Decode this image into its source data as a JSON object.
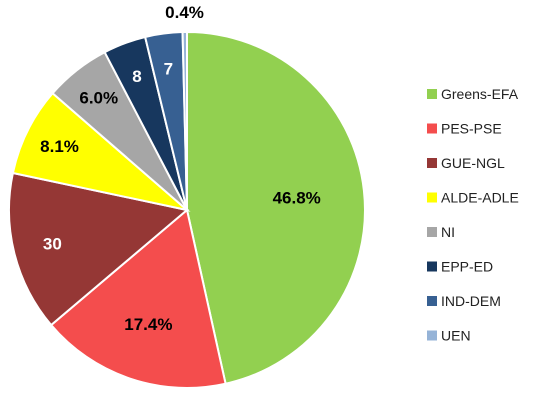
{
  "chart_data": {
    "type": "pie",
    "title": "",
    "legend_position": "right",
    "slices": [
      {
        "name": "Greens-EFA",
        "value": 46.8,
        "label": "46.8%",
        "color": "#92d050",
        "label_color": "#000000"
      },
      {
        "name": "PES-PSE",
        "value": 17.4,
        "label": "17.4%",
        "color": "#f44d4d",
        "label_color": "#000000"
      },
      {
        "name": "GUE-NGL",
        "value": 14.6,
        "label": "30",
        "color": "#953735",
        "label_color": "#ffffff"
      },
      {
        "name": "ALDE-ADLE",
        "value": 8.1,
        "label": "8.1%",
        "color": "#ffff00",
        "label_color": "#000000"
      },
      {
        "name": "NI",
        "value": 6.0,
        "label": "6.0%",
        "color": "#a6a6a6",
        "label_color": "#000000"
      },
      {
        "name": "EPP-ED",
        "value": 3.9,
        "label": "8",
        "color": "#17375e",
        "label_color": "#ffffff"
      },
      {
        "name": "IND-DEM",
        "value": 3.4,
        "label": "7",
        "color": "#376092",
        "label_color": "#ffffff"
      },
      {
        "name": "UEN",
        "value": 0.4,
        "label": "0.4%",
        "color": "#95b3d7",
        "label_color": "#000000"
      }
    ]
  }
}
